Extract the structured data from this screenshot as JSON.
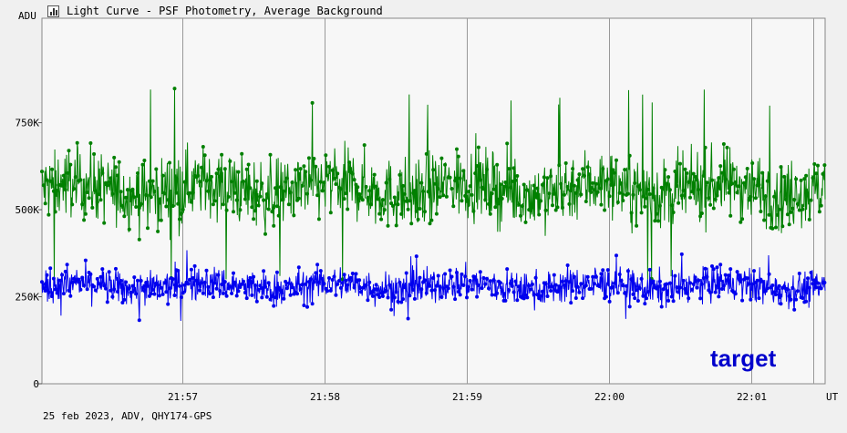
{
  "window": {
    "title": "Light Curve - PSF Photometry, Average Background",
    "footer": "25 feb 2023, ADV, QHY174-GPS"
  },
  "chart_data": {
    "type": "line",
    "title": "Light Curve - PSF Photometry, Average Background",
    "ylabel": "ADU",
    "xlabel": "UT",
    "ylim": [
      0,
      1050000
    ],
    "yticks": [
      {
        "value": 0,
        "label": "0"
      },
      {
        "value": 250000,
        "label": "250K"
      },
      {
        "value": 500000,
        "label": "500K"
      },
      {
        "value": 750000,
        "label": "750K"
      }
    ],
    "xlim": [
      "21:56:01",
      "22:01:31"
    ],
    "xticks": [
      {
        "value": "21:57:00",
        "label": "21:57"
      },
      {
        "value": "21:58:00",
        "label": "21:58"
      },
      {
        "value": "21:59:00",
        "label": "21:59"
      },
      {
        "value": "22:00:00",
        "label": "22:00"
      },
      {
        "value": "22:01:00",
        "label": "22:01"
      },
      {
        "value": "22:01:26",
        "label": ""
      }
    ],
    "grid": true,
    "annotation": "target",
    "series": [
      {
        "role": "comparison",
        "color": "#008000",
        "mean": 560000,
        "scatter": 70000,
        "min": 300000,
        "max": 850000
      },
      {
        "role": "target",
        "color": "#0000ee",
        "mean": 280000,
        "scatter": 35000,
        "min": 140000,
        "max": 385000
      }
    ]
  }
}
